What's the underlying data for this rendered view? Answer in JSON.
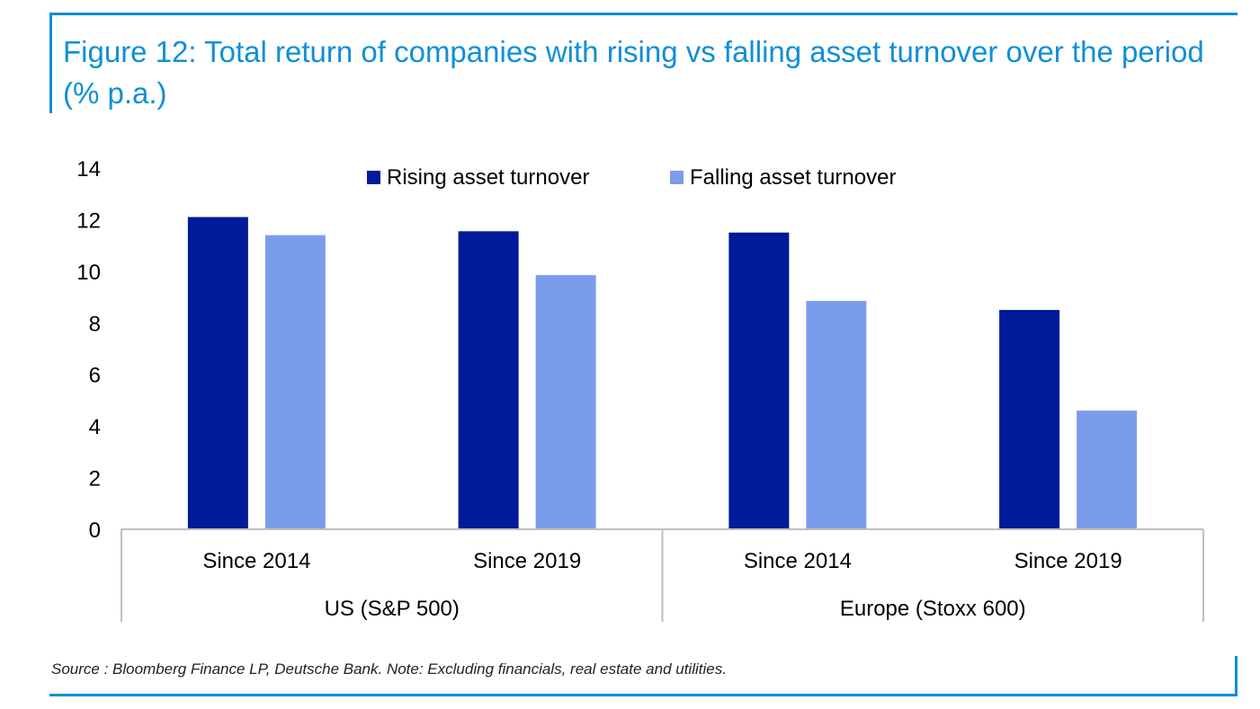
{
  "header": {
    "title": "Figure 12: Total return of companies with rising vs falling asset turnover over the period (% p.a.)"
  },
  "footer": {
    "source": "Source : Bloomberg Finance LP, Deutsche Bank. Note: Excluding financials, real estate and utilities."
  },
  "colors": {
    "rising": "#001a99",
    "falling": "#7b9ceb",
    "accent": "#0f8fd5"
  },
  "chart_data": {
    "type": "bar",
    "groups": [
      {
        "label": "US (S&P 500)",
        "categories": [
          "Since 2014",
          "Since 2019"
        ]
      },
      {
        "label": "Europe (Stoxx 600)",
        "categories": [
          "Since 2014",
          "Since 2019"
        ]
      }
    ],
    "categories": [
      "Since 2014",
      "Since 2019",
      "Since 2014",
      "Since 2019"
    ],
    "series": [
      {
        "name": "Rising asset turnover",
        "values": [
          12.1,
          11.55,
          11.5,
          8.5
        ]
      },
      {
        "name": "Falling asset turnover",
        "values": [
          11.4,
          9.85,
          8.85,
          4.6
        ]
      }
    ],
    "yticks": [
      "0",
      "2",
      "4",
      "6",
      "8",
      "10",
      "12",
      "14"
    ],
    "ylim": [
      0,
      14
    ],
    "grid": false,
    "legend": "top-center",
    "xlabel": "",
    "ylabel": ""
  }
}
